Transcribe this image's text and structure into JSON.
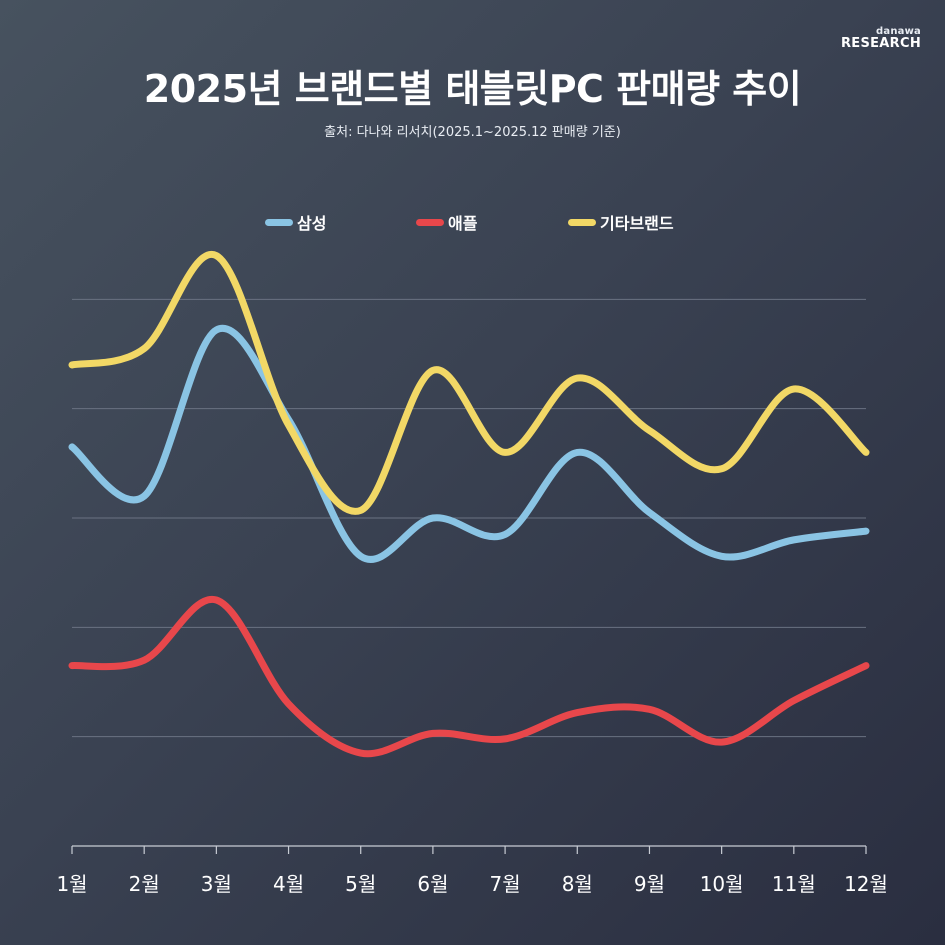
{
  "logo": {
    "top": "danawa",
    "bottom": "RESEARCH"
  },
  "title": "2025년 브랜드별 태블릿PC 판매량 추이",
  "subtitle": "출처: 다나와 리서치(2025.1~2025.12 판매량 기준)",
  "colors": {
    "samsung": "#8ac4e4",
    "apple": "#e8474b",
    "others": "#f2d866",
    "grid": "#6a7282",
    "axis": "#c8ccd4"
  },
  "chart_data": {
    "type": "line",
    "title": "2025년 브랜드별 태블릿PC 판매량 추이",
    "xlabel": "",
    "ylabel": "",
    "grid": true,
    "legend": "top-center",
    "ylim": [
      0,
      600
    ],
    "categories": [
      "1월",
      "2월",
      "3월",
      "4월",
      "5월",
      "6월",
      "7월",
      "8월",
      "9월",
      "10월",
      "11월",
      "12월"
    ],
    "series": [
      {
        "name": "삼성",
        "color": "#8ac4e4",
        "values": [
          365,
          320,
          472,
          390,
          265,
          300,
          285,
          360,
          305,
          265,
          280,
          288
        ]
      },
      {
        "name": "애플",
        "color": "#e8474b",
        "values": [
          165,
          170,
          225,
          130,
          85,
          103,
          98,
          122,
          125,
          95,
          133,
          165
        ]
      },
      {
        "name": "기타브랜드",
        "color": "#f2d866",
        "values": [
          440,
          455,
          540,
          385,
          307,
          435,
          360,
          428,
          380,
          345,
          418,
          360
        ]
      }
    ]
  }
}
